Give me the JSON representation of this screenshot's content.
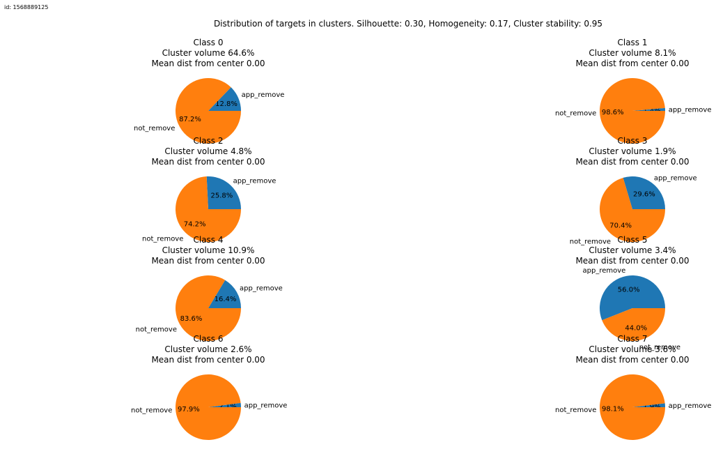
{
  "figure_id": "id: 1568889125",
  "suptitle": "Distribution of targets in clusters. Silhouette: 0.30, Homogeneity: 0.17, Cluster stability: 0.95",
  "colors": {
    "app_remove": "#1f77b4",
    "not_remove": "#ff7f0e"
  },
  "chart_data": [
    {
      "type": "pie",
      "title": [
        "Class 0",
        "Cluster volume 64.6%",
        "Mean dist from center 0.00"
      ],
      "labels": [
        "app_remove",
        "not_remove"
      ],
      "values": [
        12.8,
        87.2
      ],
      "pct_labels": [
        "12.8%",
        "87.2%"
      ]
    },
    {
      "type": "pie",
      "title": [
        "Class 1",
        "Cluster volume 8.1%",
        "Mean dist from center 0.00"
      ],
      "labels": [
        "app_remove",
        "not_remove"
      ],
      "values": [
        1.4,
        98.6
      ],
      "pct_labels": [
        "1.4%",
        "98.6%"
      ]
    },
    {
      "type": "pie",
      "title": [
        "Class 2",
        "Cluster volume 4.8%",
        "Mean dist from center 0.00"
      ],
      "labels": [
        "app_remove",
        "not_remove"
      ],
      "values": [
        25.8,
        74.2
      ],
      "pct_labels": [
        "25.8%",
        "74.2%"
      ]
    },
    {
      "type": "pie",
      "title": [
        "Class 3",
        "Cluster volume 1.9%",
        "Mean dist from center 0.00"
      ],
      "labels": [
        "app_remove",
        "not_remove"
      ],
      "values": [
        29.6,
        70.4
      ],
      "pct_labels": [
        "29.6%",
        "70.4%"
      ]
    },
    {
      "type": "pie",
      "title": [
        "Class 4",
        "Cluster volume 10.9%",
        "Mean dist from center 0.00"
      ],
      "labels": [
        "app_remove",
        "not_remove"
      ],
      "values": [
        16.4,
        83.6
      ],
      "pct_labels": [
        "16.4%",
        "83.6%"
      ]
    },
    {
      "type": "pie",
      "title": [
        "Class 5",
        "Cluster volume 3.4%",
        "Mean dist from center 0.00"
      ],
      "labels": [
        "app_remove",
        "not_remove"
      ],
      "values": [
        56.0,
        44.0
      ],
      "pct_labels": [
        "56.0%",
        "44.0%"
      ]
    },
    {
      "type": "pie",
      "title": [
        "Class 6",
        "Cluster volume 2.6%",
        "Mean dist from center 0.00"
      ],
      "labels": [
        "app_remove",
        "not_remove"
      ],
      "values": [
        2.1,
        97.9
      ],
      "pct_labels": [
        "2.1%",
        "97.9%"
      ]
    },
    {
      "type": "pie",
      "title": [
        "Class 7",
        "Cluster volume 3.6%",
        "Mean dist from center 0.00"
      ],
      "labels": [
        "app_remove",
        "not_remove"
      ],
      "values": [
        1.9,
        98.1
      ],
      "pct_labels": [
        "1.9%",
        "98.1%"
      ]
    }
  ]
}
